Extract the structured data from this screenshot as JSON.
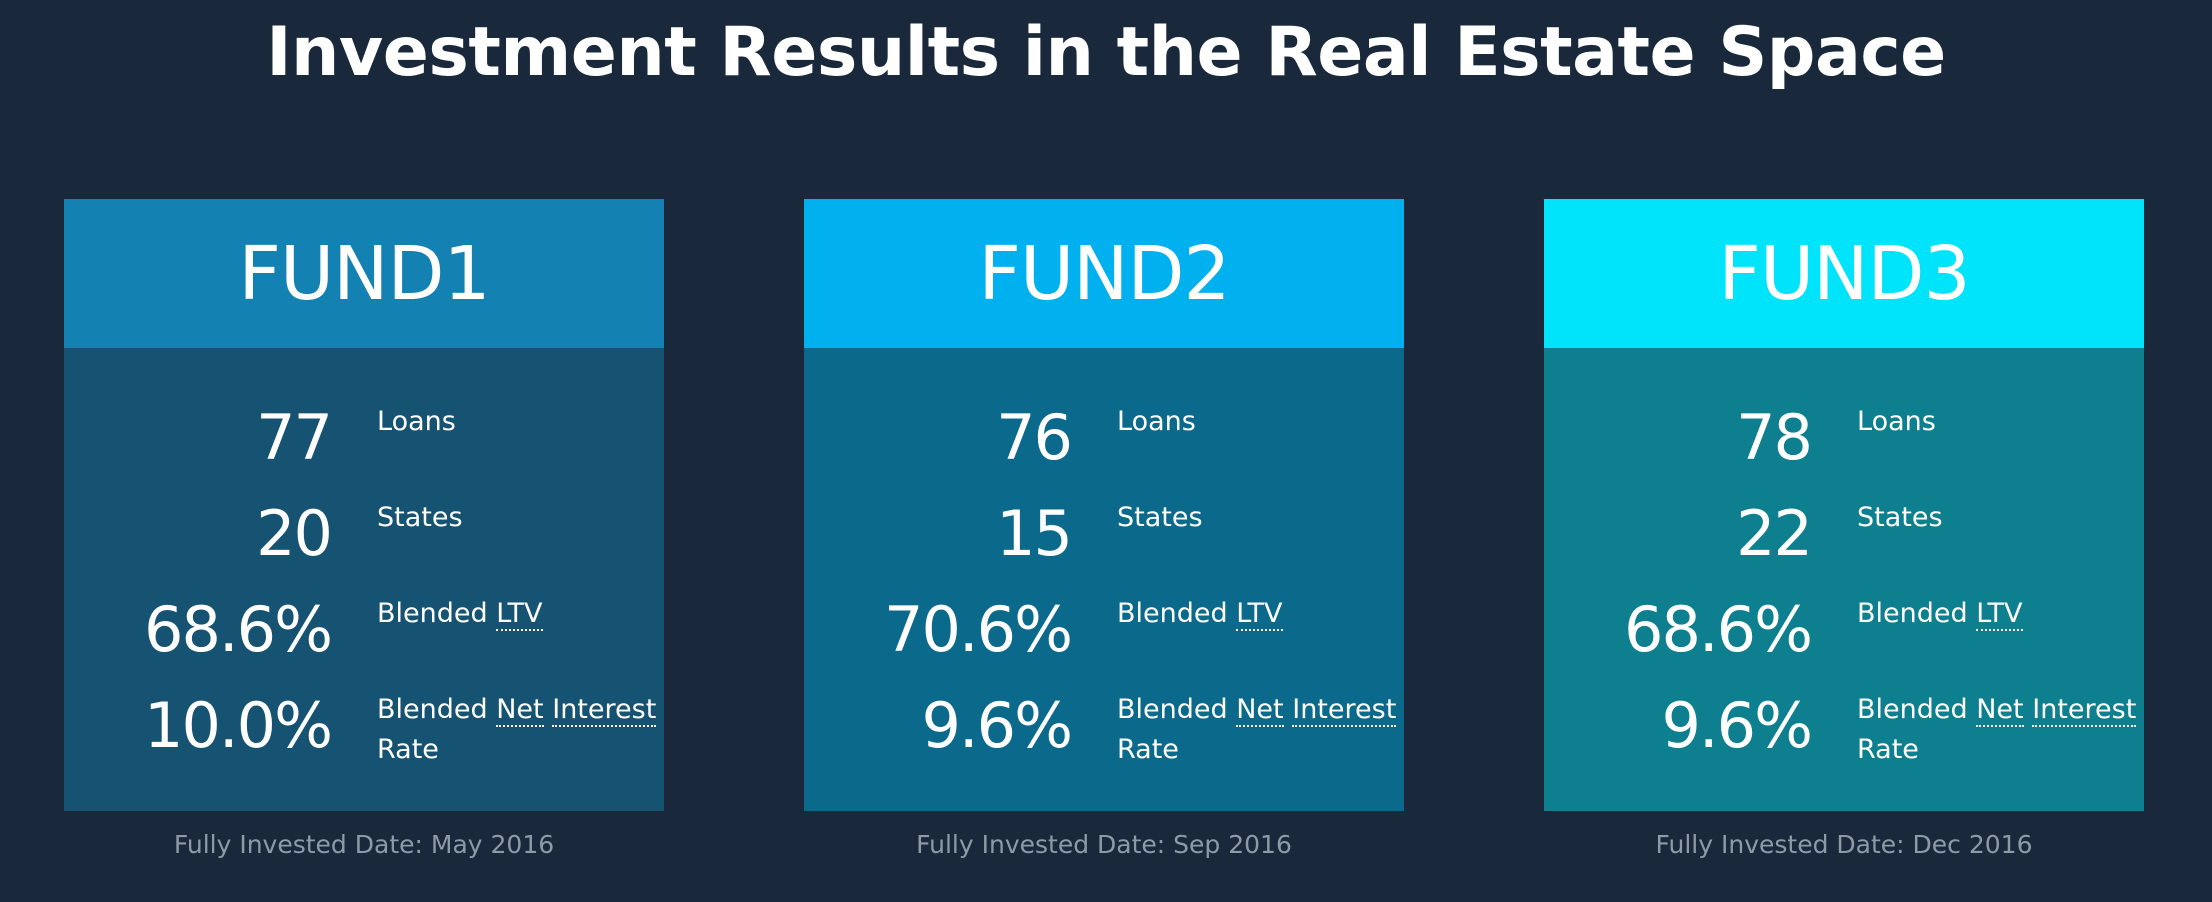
{
  "page": {
    "title": "Investment Results in the Real Estate Space"
  },
  "colors": {
    "background": "#19293b",
    "fund1_header": "#1481b3",
    "fund1_body": "#165372",
    "fund2_header": "#00b0ef",
    "fund2_body": "#0b6a8c",
    "fund3_header": "#00e4fb",
    "fund3_body": "#0d7f8e"
  },
  "funds": [
    {
      "name": "FUND1",
      "loans": {
        "value": "77",
        "label": "Loans"
      },
      "states": {
        "value": "20",
        "label": "States"
      },
      "ltv": {
        "value": "68.6%",
        "prefix": "Blended",
        "abbr": "LTV"
      },
      "rate": {
        "value": "10.0%",
        "prefix": "Blended",
        "word1": "Net",
        "word2": "Interest",
        "suffix": "Rate"
      },
      "date": "Fully Invested Date: May 2016"
    },
    {
      "name": "FUND2",
      "loans": {
        "value": "76",
        "label": "Loans"
      },
      "states": {
        "value": "15",
        "label": "States"
      },
      "ltv": {
        "value": "70.6%",
        "prefix": "Blended",
        "abbr": "LTV"
      },
      "rate": {
        "value": "9.6%",
        "prefix": "Blended",
        "word1": "Net",
        "word2": "Interest",
        "suffix": "Rate"
      },
      "date": "Fully Invested Date: Sep 2016"
    },
    {
      "name": "FUND3",
      "loans": {
        "value": "78",
        "label": "Loans"
      },
      "states": {
        "value": "22",
        "label": "States"
      },
      "ltv": {
        "value": "68.6%",
        "prefix": "Blended",
        "abbr": "LTV"
      },
      "rate": {
        "value": "9.6%",
        "prefix": "Blended",
        "word1": "Net",
        "word2": "Interest",
        "suffix": "Rate"
      },
      "date": "Fully Invested Date: Dec 2016"
    }
  ]
}
